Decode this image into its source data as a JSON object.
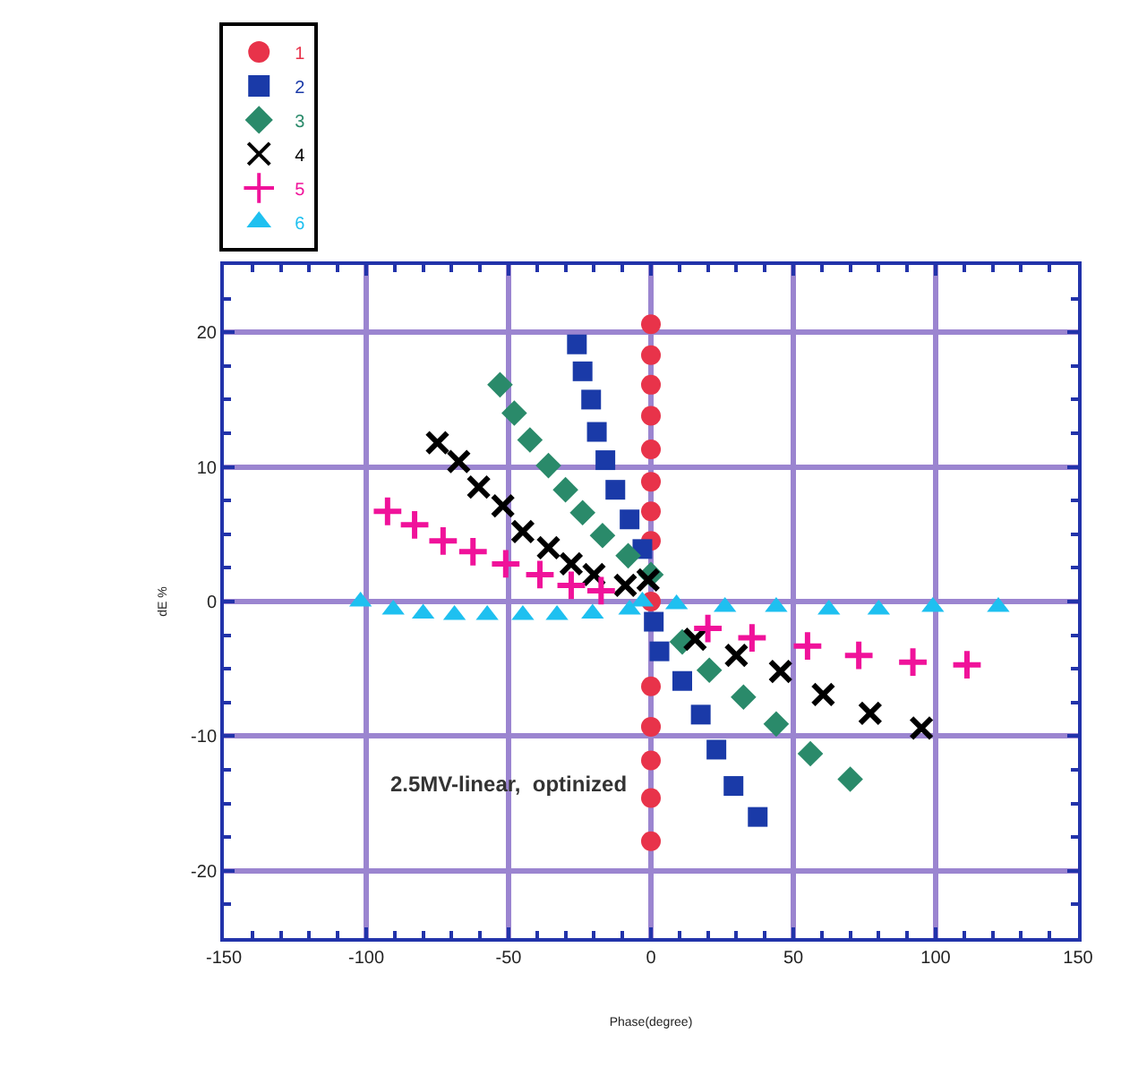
{
  "chart_data": {
    "type": "scatter",
    "xlabel": "Phase(degree)",
    "ylabel": "dE %",
    "xlim": [
      -150,
      150
    ],
    "xticks": [
      -150,
      -100,
      -50,
      0,
      50,
      100,
      150
    ],
    "ylim": [
      -25,
      25
    ],
    "yticks": [
      -20,
      -10,
      0,
      10,
      20
    ],
    "grid": true,
    "legend": "top left",
    "annotations": [
      "2.5MV-linear,  optinized"
    ],
    "series": [
      {
        "name": "1",
        "color": "#e8334a",
        "marker": "circle",
        "x": [
          0,
          0,
          0,
          0,
          0,
          0,
          0,
          0,
          0,
          0,
          0,
          0,
          0,
          0
        ],
        "values": [
          20.6,
          18.3,
          16.1,
          13.8,
          11.3,
          8.9,
          6.7,
          4.5,
          0,
          -6.3,
          -9.3,
          -11.8,
          -14.6,
          -17.8
        ]
      },
      {
        "name": "2",
        "color": "#1a3aa8",
        "marker": "square",
        "x": [
          -26,
          -24,
          -21,
          -19,
          -16,
          -12.5,
          -7.5,
          -3,
          1,
          3,
          11,
          17.5,
          23,
          29,
          37.5
        ],
        "values": [
          19.1,
          17.1,
          15,
          12.6,
          10.5,
          8.3,
          6.1,
          3.9,
          -1.5,
          -3.7,
          -5.9,
          -8.4,
          -11,
          -13.7,
          -16
        ]
      },
      {
        "name": "3",
        "color": "#2a8a6a",
        "marker": "diamond",
        "x": [
          -53,
          -48,
          -42.5,
          -36,
          -30,
          -24,
          -17,
          -8,
          0,
          11,
          20.5,
          32.5,
          44,
          56,
          70
        ],
        "values": [
          16.1,
          14,
          12,
          10.1,
          8.3,
          6.6,
          4.9,
          3.4,
          2,
          -3,
          -5.1,
          -7.1,
          -9.1,
          -11.3,
          -13.2
        ]
      },
      {
        "name": "4",
        "color": "#000000",
        "marker": "cross",
        "x": [
          -75,
          -67.5,
          -60.5,
          -52,
          -45,
          -36,
          -28,
          -20,
          -9,
          -1,
          15.5,
          30,
          45.5,
          60.5,
          77,
          95
        ],
        "values": [
          11.8,
          10.4,
          8.5,
          7.1,
          5.2,
          4,
          2.8,
          2,
          1.2,
          1.6,
          -2.8,
          -4,
          -5.2,
          -6.9,
          -8.3,
          -9.4
        ]
      },
      {
        "name": "5",
        "color": "#f0129a",
        "marker": "plus",
        "x": [
          -92.5,
          -83,
          -73,
          -62.5,
          -51,
          -39,
          -28,
          -17.5,
          20,
          35.5,
          55,
          73,
          92,
          111
        ],
        "values": [
          6.7,
          5.7,
          4.5,
          3.7,
          2.8,
          2,
          1.2,
          0.8,
          -2,
          -2.7,
          -3.3,
          -4,
          -4.5,
          -4.7
        ]
      },
      {
        "name": "6",
        "color": "#1ec0f0",
        "marker": "triangle",
        "x": [
          -102,
          -90.5,
          -80,
          -69,
          -57.5,
          -45,
          -33,
          -20.5,
          -7.5,
          -3,
          9,
          26,
          44,
          62.5,
          80,
          99,
          122
        ],
        "values": [
          0,
          -0.6,
          -0.9,
          -1,
          -1,
          -1,
          -1,
          -0.9,
          -0.6,
          0,
          -0.2,
          -0.4,
          -0.4,
          -0.6,
          -0.6,
          -0.4,
          -0.4
        ]
      }
    ]
  }
}
